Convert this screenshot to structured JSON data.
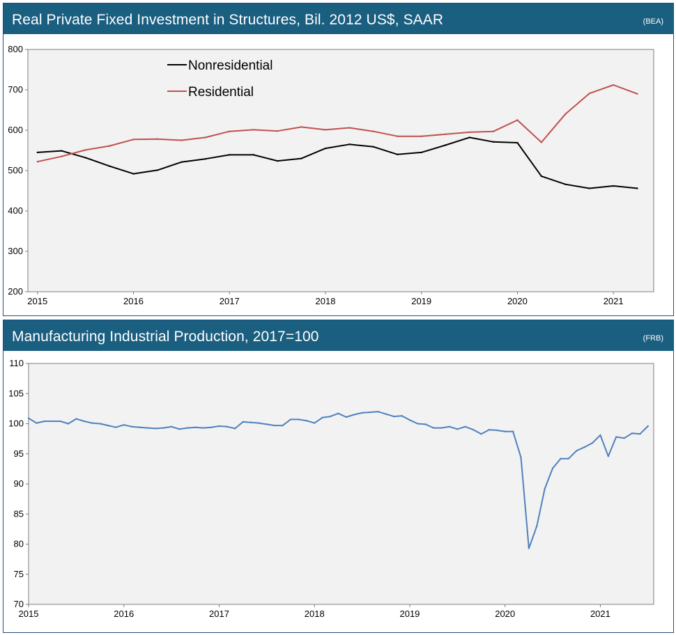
{
  "chart_data": [
    {
      "type": "line",
      "title": "Real Private Fixed Investment in Structures, Bil. 2012 US$, SAAR",
      "source": "(BEA)",
      "xlabel": "",
      "ylabel": "",
      "ylim": [
        200,
        800
      ],
      "yticks": [
        200,
        300,
        400,
        500,
        600,
        700,
        800
      ],
      "xlim": [
        2015,
        2021.3
      ],
      "xticks": [
        "2015",
        "2016",
        "2017",
        "2018",
        "2019",
        "2020",
        "2021"
      ],
      "grid": false,
      "legend": "top-left",
      "x": [
        2015.0,
        2015.25,
        2015.5,
        2015.75,
        2016.0,
        2016.25,
        2016.5,
        2016.75,
        2017.0,
        2017.25,
        2017.5,
        2017.75,
        2018.0,
        2018.25,
        2018.5,
        2018.75,
        2019.0,
        2019.25,
        2019.5,
        2019.75,
        2020.0,
        2020.25,
        2020.5,
        2020.75,
        2021.0,
        2021.25
      ],
      "series": [
        {
          "name": "Nonresidential",
          "color": "#000000",
          "values": [
            545,
            549,
            532,
            511,
            492,
            501,
            521,
            529,
            539,
            539,
            524,
            530,
            555,
            565,
            559,
            540,
            545,
            563,
            582,
            571,
            569,
            486,
            466,
            456,
            462,
            456
          ]
        },
        {
          "name": "Residential",
          "color": "#c0504d",
          "values": [
            522,
            535,
            551,
            561,
            577,
            578,
            575,
            582,
            597,
            601,
            598,
            608,
            601,
            606,
            597,
            585,
            585,
            590,
            595,
            597,
            625,
            570,
            640,
            691,
            712,
            690
          ]
        }
      ]
    },
    {
      "type": "line",
      "title": "Manufacturing Industrial Production, 2017=100",
      "source": "(FRB)",
      "xlabel": "",
      "ylabel": "",
      "ylim": [
        70,
        110
      ],
      "yticks": [
        70,
        75,
        80,
        85,
        90,
        95,
        100,
        105,
        110
      ],
      "xlim": [
        2015,
        2021.5833
      ],
      "xticks": [
        "2015",
        "2016",
        "2017",
        "2018",
        "2019",
        "2020",
        "2021"
      ],
      "grid": false,
      "legend": "none",
      "x_start": 2015,
      "x_step": 0.0833333,
      "series": [
        {
          "name": "Manufacturing Industrial Production",
          "color": "#4f81bd",
          "values": [
            100.9,
            100.1,
            100.4,
            100.4,
            100.4,
            100.0,
            100.8,
            100.4,
            100.1,
            100.0,
            99.7,
            99.4,
            99.8,
            99.5,
            99.4,
            99.3,
            99.2,
            99.3,
            99.5,
            99.1,
            99.3,
            99.4,
            99.3,
            99.4,
            99.6,
            99.5,
            99.2,
            100.3,
            100.2,
            100.1,
            99.9,
            99.7,
            99.7,
            100.7,
            100.7,
            100.5,
            100.1,
            101.0,
            101.2,
            101.7,
            101.1,
            101.5,
            101.8,
            101.9,
            102.0,
            101.6,
            101.2,
            101.3,
            100.6,
            100.0,
            99.9,
            99.3,
            99.3,
            99.5,
            99.1,
            99.5,
            99.0,
            98.3,
            99.0,
            98.9,
            98.7,
            98.7,
            94.4,
            79.3,
            83.0,
            89.2,
            92.6,
            94.2,
            94.2,
            95.5,
            96.1,
            96.8,
            98.1,
            94.6,
            97.8,
            97.6,
            98.4,
            98.3,
            99.6
          ]
        }
      ]
    }
  ]
}
